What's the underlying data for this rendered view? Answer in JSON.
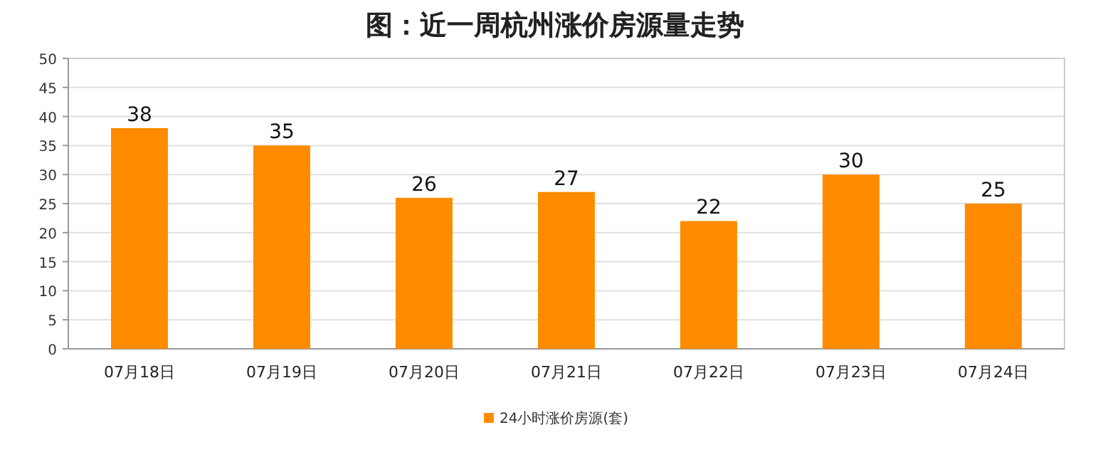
{
  "chart_data": {
    "type": "bar",
    "title": "图：近一周杭州涨价房源量走势",
    "categories": [
      "07月18日",
      "07月19日",
      "07月20日",
      "07月21日",
      "07月22日",
      "07月23日",
      "07月24日"
    ],
    "series": [
      {
        "name": "24小时涨价房源(套)",
        "color": "#ff8c00",
        "values": [
          38,
          35,
          26,
          27,
          22,
          30,
          25
        ]
      }
    ],
    "ylim": [
      0,
      50
    ],
    "yticks": [
      0,
      5,
      10,
      15,
      20,
      25,
      30,
      35,
      40,
      45,
      50
    ],
    "grid": "y",
    "legend": "bottom",
    "data_labels": true
  }
}
